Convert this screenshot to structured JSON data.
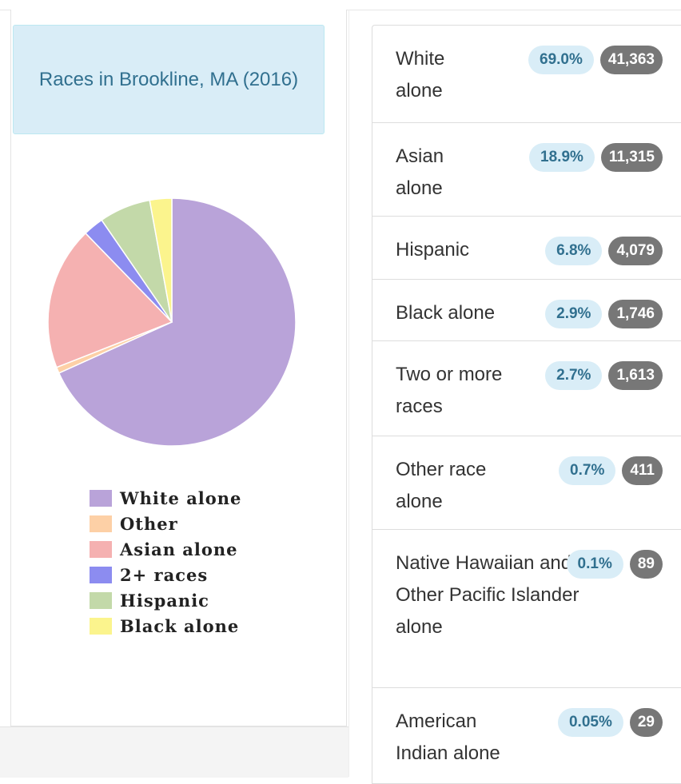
{
  "chart_title": "Races in Brookline, MA (2016)",
  "chart_data": {
    "type": "pie",
    "title": "Races in Brookline, MA (2016)",
    "legend_position": "bottom",
    "slices": [
      {
        "label": "White alone",
        "value": 69.0,
        "color": "#b9a3d9"
      },
      {
        "label": "Other",
        "value": 0.8,
        "color": "#fdd0a6"
      },
      {
        "label": "Asian alone",
        "value": 18.9,
        "color": "#f5b1b1"
      },
      {
        "label": "2+ races",
        "value": 2.7,
        "color": "#8c8cf0"
      },
      {
        "label": "Hispanic",
        "value": 6.8,
        "color": "#c3d9a9"
      },
      {
        "label": "Black alone",
        "value": 2.9,
        "color": "#fbf48d"
      }
    ]
  },
  "rows": [
    {
      "label": "White alone",
      "pct": "69.0%",
      "count": "41,363"
    },
    {
      "label": "Asian alone",
      "pct": "18.9%",
      "count": "11,315"
    },
    {
      "label": "Hispanic",
      "pct": "6.8%",
      "count": "4,079"
    },
    {
      "label": "Black alone",
      "pct": "2.9%",
      "count": "1,746"
    },
    {
      "label": "Two or more races",
      "pct": "2.7%",
      "count": "1,613"
    },
    {
      "label": "Other race alone",
      "pct": "0.7%",
      "count": "411"
    },
    {
      "label": "Native Hawaiian and Other Pacific Islander alone",
      "pct": "0.1%",
      "count": "89"
    },
    {
      "label": "American Indian alone",
      "pct": "0.05%",
      "count": "29"
    }
  ]
}
